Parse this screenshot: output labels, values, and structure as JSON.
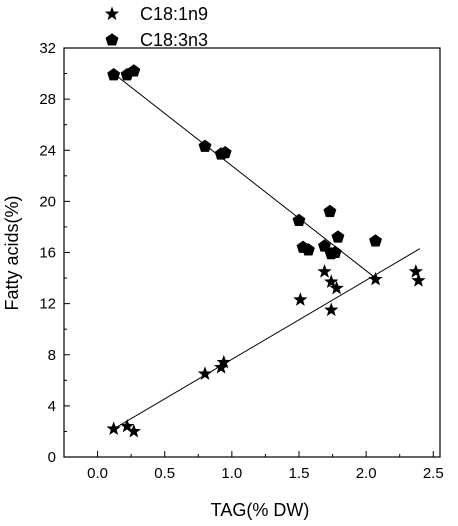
{
  "chart_data": {
    "type": "scatter",
    "title": "",
    "xlabel": "TAG(% DW)",
    "ylabel": "Fatty acids(%)",
    "xlim": [
      -0.25,
      2.55
    ],
    "ylim": [
      0,
      32
    ],
    "xticks": [
      0.0,
      0.5,
      1.0,
      1.5,
      2.0,
      2.5
    ],
    "xtick_labels": [
      "0.0",
      "0.5",
      "1.0",
      "1.5",
      "2.0",
      "2.5"
    ],
    "yticks": [
      0,
      4,
      8,
      12,
      16,
      20,
      24,
      28,
      32
    ],
    "ytick_labels": [
      "0",
      "4",
      "8",
      "12",
      "16",
      "20",
      "24",
      "28",
      "32"
    ],
    "grid": false,
    "legend_position": "top-left",
    "series": [
      {
        "name": "C18:1n9",
        "marker": "star",
        "color": "#000000",
        "points": [
          [
            0.12,
            2.2
          ],
          [
            0.22,
            2.4
          ],
          [
            0.27,
            2.0
          ],
          [
            0.8,
            6.5
          ],
          [
            0.92,
            7.0
          ],
          [
            0.94,
            7.4
          ],
          [
            1.51,
            12.3
          ],
          [
            1.69,
            14.5
          ],
          [
            1.74,
            11.5
          ],
          [
            1.74,
            13.7
          ],
          [
            1.78,
            13.2
          ],
          [
            2.07,
            13.9
          ],
          [
            2.37,
            14.5
          ],
          [
            2.39,
            13.8
          ]
        ],
        "fit_line": [
          [
            0.12,
            2.2
          ],
          [
            2.4,
            16.3
          ]
        ]
      },
      {
        "name": "C18:3n3",
        "marker": "pentagon",
        "color": "#000000",
        "points": [
          [
            0.12,
            29.9
          ],
          [
            0.22,
            29.9
          ],
          [
            0.27,
            30.2
          ],
          [
            0.8,
            24.3
          ],
          [
            0.92,
            23.7
          ],
          [
            0.95,
            23.8
          ],
          [
            1.5,
            18.5
          ],
          [
            1.53,
            16.4
          ],
          [
            1.57,
            16.2
          ],
          [
            1.69,
            16.5
          ],
          [
            1.73,
            19.2
          ],
          [
            1.74,
            15.9
          ],
          [
            1.77,
            16.0
          ],
          [
            1.79,
            17.2
          ],
          [
            2.07,
            16.9
          ]
        ],
        "fit_line": [
          [
            0.12,
            30.0
          ],
          [
            2.07,
            14.0
          ]
        ]
      }
    ]
  }
}
